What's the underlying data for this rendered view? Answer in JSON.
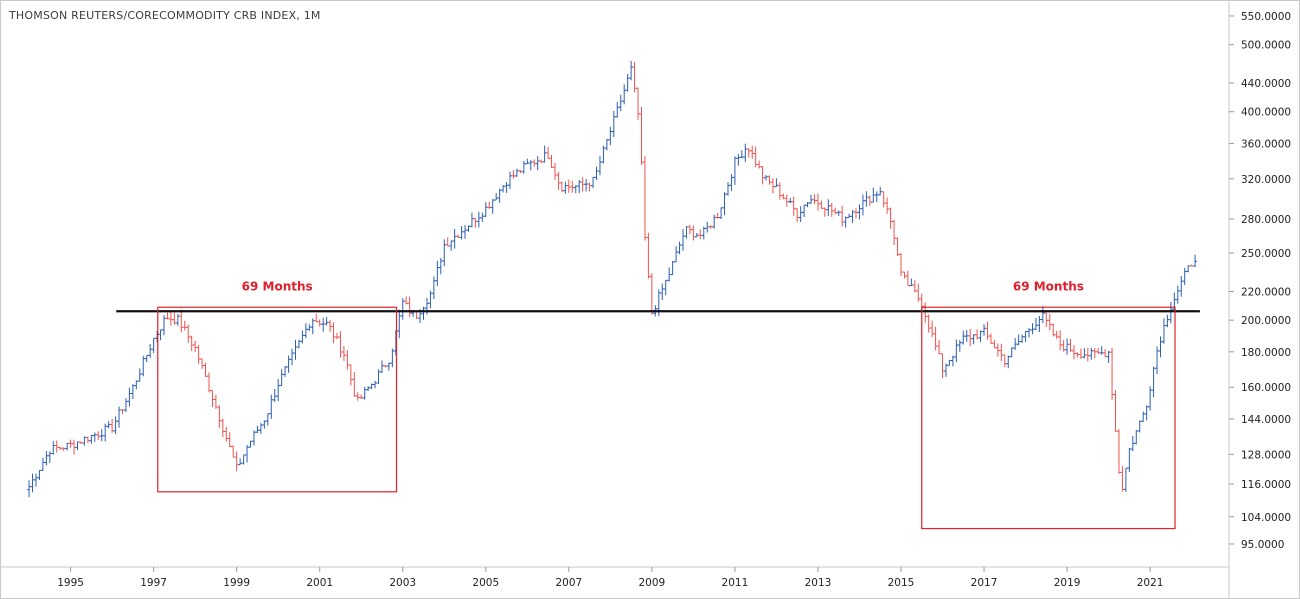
{
  "header": {
    "title": "THOMSON REUTERS/CORECOMMODITY CRB INDEX, 1M"
  },
  "chart_data": {
    "type": "ohlc",
    "title": "THOMSON REUTERS/CORECOMMODITY CRB INDEX, 1M",
    "interval": "1M",
    "scale": "log",
    "grid": false,
    "ylim": [
      88,
      580
    ],
    "xlim": [
      1993.3,
      2022.9
    ],
    "y_ticks": [
      "550.0000",
      "500.0000",
      "440.0000",
      "400.0000",
      "360.0000",
      "320.0000",
      "280.0000",
      "250.0000",
      "220.0000",
      "200.0000",
      "180.0000",
      "160.0000",
      "144.0000",
      "128.0000",
      "116.0000",
      "104.0000",
      "95.0000"
    ],
    "x_ticks": [
      "1995",
      "1997",
      "1999",
      "2001",
      "2003",
      "2005",
      "2007",
      "2009",
      "2011",
      "2013",
      "2015",
      "2017",
      "2019",
      "2021"
    ],
    "up_color": "#2b5fb4",
    "down_color": "#ef5350",
    "close_points": [
      [
        1994.0,
        115
      ],
      [
        1994.5,
        130
      ],
      [
        1995.0,
        132
      ],
      [
        1995.5,
        136
      ],
      [
        1996.0,
        140
      ],
      [
        1996.5,
        160
      ],
      [
        1997.0,
        188
      ],
      [
        1997.3,
        202
      ],
      [
        1997.6,
        200
      ],
      [
        1998.0,
        182
      ],
      [
        1998.5,
        150
      ],
      [
        1999.0,
        122
      ],
      [
        1999.3,
        133
      ],
      [
        1999.7,
        145
      ],
      [
        2000.0,
        162
      ],
      [
        2000.5,
        185
      ],
      [
        2000.8,
        201
      ],
      [
        2001.2,
        197
      ],
      [
        2001.6,
        178
      ],
      [
        2001.9,
        152
      ],
      [
        2002.3,
        163
      ],
      [
        2002.7,
        177
      ],
      [
        2003.0,
        212
      ],
      [
        2003.3,
        202
      ],
      [
        2003.7,
        220
      ],
      [
        2004.0,
        257
      ],
      [
        2004.5,
        272
      ],
      [
        2005.0,
        290
      ],
      [
        2005.5,
        318
      ],
      [
        2006.0,
        335
      ],
      [
        2006.5,
        347
      ],
      [
        2006.8,
        312
      ],
      [
        2007.2,
        312
      ],
      [
        2007.6,
        318
      ],
      [
        2008.0,
        375
      ],
      [
        2008.5,
        460
      ],
      [
        2008.7,
        385
      ],
      [
        2008.85,
        250
      ],
      [
        2009.0,
        205
      ],
      [
        2009.4,
        232
      ],
      [
        2009.8,
        270
      ],
      [
        2010.2,
        265
      ],
      [
        2010.6,
        285
      ],
      [
        2011.0,
        338
      ],
      [
        2011.3,
        358
      ],
      [
        2011.7,
        320
      ],
      [
        2012.0,
        310
      ],
      [
        2012.5,
        285
      ],
      [
        2012.8,
        300
      ],
      [
        2013.2,
        292
      ],
      [
        2013.6,
        280
      ],
      [
        2014.0,
        293
      ],
      [
        2014.5,
        308
      ],
      [
        2014.8,
        272
      ],
      [
        2015.0,
        232
      ],
      [
        2015.5,
        212
      ],
      [
        2016.0,
        170
      ],
      [
        2016.5,
        188
      ],
      [
        2017.0,
        192
      ],
      [
        2017.5,
        175
      ],
      [
        2018.0,
        192
      ],
      [
        2018.4,
        203
      ],
      [
        2018.8,
        185
      ],
      [
        2019.2,
        180
      ],
      [
        2019.6,
        178
      ],
      [
        2020.0,
        180
      ],
      [
        2020.3,
        112
      ],
      [
        2020.5,
        130
      ],
      [
        2020.9,
        150
      ],
      [
        2021.2,
        185
      ],
      [
        2021.5,
        210
      ],
      [
        2021.8,
        230
      ],
      [
        2022.1,
        248
      ]
    ],
    "horizontal_lines": [
      {
        "value": 206,
        "x_from": 1996.1,
        "x_to": 2022.2
      }
    ],
    "annotations": [
      {
        "label": "69 Months",
        "x_from": 1997.1,
        "x_to": 2002.85,
        "y_top": 206,
        "y_bottom": 113
      },
      {
        "label": "69 Months",
        "x_from": 2015.5,
        "x_to": 2021.6,
        "y_top": 206,
        "y_bottom": 100
      }
    ]
  }
}
